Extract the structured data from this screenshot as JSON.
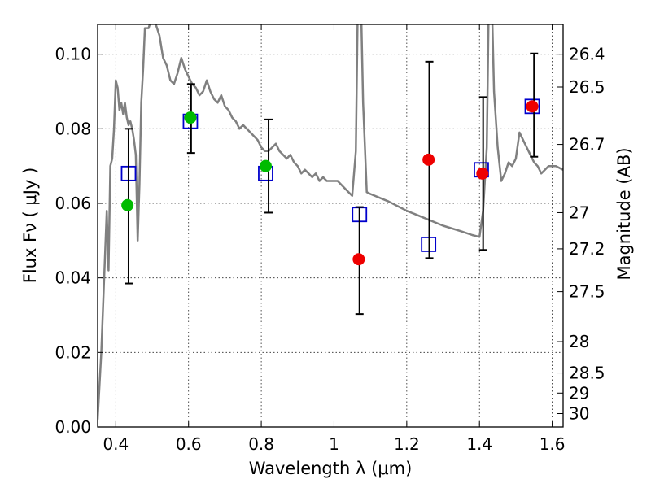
{
  "chart_data": {
    "type": "scatter",
    "xlabel": "Wavelength  λ (μm)",
    "ylabel": "Flux  Fν  ( μJy )",
    "ylabel_right": "Magnitude (AB)",
    "xlim": [
      0.35,
      1.63
    ],
    "ylim": [
      0.0,
      0.108
    ],
    "grid": true,
    "x_ticks": [
      0.4,
      0.6,
      0.8,
      1.0,
      1.2,
      1.4,
      1.6
    ],
    "x_tick_labels": [
      "0.4",
      "0.6",
      "0.8",
      "1",
      "1.2",
      "1.4",
      "1.6"
    ],
    "y_ticks": [
      0.0,
      0.02,
      0.04,
      0.06,
      0.08,
      0.1
    ],
    "y_tick_labels": [
      "0.00",
      "0.02",
      "0.04",
      "0.06",
      "0.08",
      "0.10"
    ],
    "right_ticks": [
      {
        "label": "26.4",
        "flux": 0.1
      },
      {
        "label": "26.5",
        "flux": 0.0912
      },
      {
        "label": "26.7",
        "flux": 0.0758
      },
      {
        "label": "27",
        "flux": 0.0575
      },
      {
        "label": "27.2",
        "flux": 0.0478
      },
      {
        "label": "27.5",
        "flux": 0.0363
      },
      {
        "label": "28",
        "flux": 0.0229
      },
      {
        "label": "28.5",
        "flux": 0.0145
      },
      {
        "label": "29",
        "flux": 0.0091
      },
      {
        "label": "30",
        "flux": 0.0036
      }
    ],
    "series": [
      {
        "kind": "model",
        "color": "#808080",
        "points": [
          [
            0.35,
            0.002
          ],
          [
            0.36,
            0.02
          ],
          [
            0.37,
            0.045
          ],
          [
            0.375,
            0.058
          ],
          [
            0.38,
            0.042
          ],
          [
            0.385,
            0.07
          ],
          [
            0.39,
            0.072
          ],
          [
            0.395,
            0.08
          ],
          [
            0.4,
            0.093
          ],
          [
            0.405,
            0.091
          ],
          [
            0.41,
            0.085
          ],
          [
            0.415,
            0.087
          ],
          [
            0.42,
            0.084
          ],
          [
            0.425,
            0.087
          ],
          [
            0.43,
            0.083
          ],
          [
            0.435,
            0.081
          ],
          [
            0.44,
            0.082
          ],
          [
            0.445,
            0.08
          ],
          [
            0.45,
            0.077
          ],
          [
            0.455,
            0.073
          ],
          [
            0.46,
            0.05
          ],
          [
            0.465,
            0.065
          ],
          [
            0.47,
            0.087
          ],
          [
            0.475,
            0.096
          ],
          [
            0.48,
            0.107
          ],
          [
            0.49,
            0.107
          ],
          [
            0.5,
            0.11
          ],
          [
            0.51,
            0.108
          ],
          [
            0.52,
            0.105
          ],
          [
            0.53,
            0.099
          ],
          [
            0.54,
            0.097
          ],
          [
            0.55,
            0.093
          ],
          [
            0.56,
            0.092
          ],
          [
            0.57,
            0.095
          ],
          [
            0.58,
            0.099
          ],
          [
            0.59,
            0.096
          ],
          [
            0.6,
            0.094
          ],
          [
            0.61,
            0.092
          ],
          [
            0.62,
            0.091
          ],
          [
            0.63,
            0.089
          ],
          [
            0.64,
            0.09
          ],
          [
            0.65,
            0.093
          ],
          [
            0.66,
            0.09
          ],
          [
            0.67,
            0.088
          ],
          [
            0.68,
            0.087
          ],
          [
            0.69,
            0.089
          ],
          [
            0.7,
            0.086
          ],
          [
            0.71,
            0.085
          ],
          [
            0.72,
            0.083
          ],
          [
            0.73,
            0.082
          ],
          [
            0.74,
            0.08
          ],
          [
            0.75,
            0.081
          ],
          [
            0.76,
            0.08
          ],
          [
            0.77,
            0.079
          ],
          [
            0.78,
            0.078
          ],
          [
            0.79,
            0.077
          ],
          [
            0.8,
            0.075
          ],
          [
            0.81,
            0.074
          ],
          [
            0.82,
            0.074
          ],
          [
            0.83,
            0.075
          ],
          [
            0.84,
            0.076
          ],
          [
            0.85,
            0.074
          ],
          [
            0.86,
            0.073
          ],
          [
            0.87,
            0.072
          ],
          [
            0.88,
            0.073
          ],
          [
            0.89,
            0.071
          ],
          [
            0.9,
            0.07
          ],
          [
            0.91,
            0.068
          ],
          [
            0.92,
            0.069
          ],
          [
            0.93,
            0.068
          ],
          [
            0.94,
            0.067
          ],
          [
            0.95,
            0.068
          ],
          [
            0.96,
            0.066
          ],
          [
            0.97,
            0.067
          ],
          [
            0.98,
            0.066
          ],
          [
            0.99,
            0.066
          ],
          [
            1.0,
            0.066
          ],
          [
            1.01,
            0.066
          ],
          [
            1.02,
            0.065
          ],
          [
            1.03,
            0.064
          ],
          [
            1.04,
            0.063
          ],
          [
            1.05,
            0.062
          ],
          [
            1.06,
            0.074
          ],
          [
            1.065,
            0.11
          ],
          [
            1.07,
            0.11
          ],
          [
            1.075,
            0.11
          ],
          [
            1.08,
            0.087
          ],
          [
            1.09,
            0.063
          ],
          [
            1.1,
            0.0625
          ],
          [
            1.15,
            0.0605
          ],
          [
            1.2,
            0.058
          ],
          [
            1.25,
            0.056
          ],
          [
            1.3,
            0.054
          ],
          [
            1.35,
            0.0525
          ],
          [
            1.38,
            0.0515
          ],
          [
            1.4,
            0.051
          ],
          [
            1.41,
            0.058
          ],
          [
            1.42,
            0.075
          ],
          [
            1.425,
            0.11
          ],
          [
            1.435,
            0.11
          ],
          [
            1.44,
            0.09
          ],
          [
            1.45,
            0.075
          ],
          [
            1.46,
            0.066
          ],
          [
            1.47,
            0.068
          ],
          [
            1.48,
            0.071
          ],
          [
            1.49,
            0.07
          ],
          [
            1.5,
            0.072
          ],
          [
            1.51,
            0.079
          ],
          [
            1.52,
            0.077
          ],
          [
            1.53,
            0.075
          ],
          [
            1.54,
            0.073
          ],
          [
            1.55,
            0.071
          ],
          [
            1.56,
            0.07
          ],
          [
            1.57,
            0.068
          ],
          [
            1.58,
            0.069
          ],
          [
            1.59,
            0.07
          ],
          [
            1.6,
            0.07
          ],
          [
            1.61,
            0.07
          ],
          [
            1.62,
            0.0695
          ],
          [
            1.63,
            0.069
          ]
        ]
      },
      {
        "kind": "open-square",
        "color": "#0000cc",
        "points": [
          [
            0.435,
            0.068
          ],
          [
            0.605,
            0.082
          ],
          [
            0.812,
            0.068
          ],
          [
            1.07,
            0.057
          ],
          [
            1.26,
            0.049
          ],
          [
            1.405,
            0.069
          ],
          [
            1.545,
            0.086
          ]
        ]
      },
      {
        "kind": "filled-circle",
        "color": "#00bb00",
        "points": [
          [
            0.432,
            0.0595
          ],
          [
            0.605,
            0.083
          ],
          [
            0.812,
            0.07
          ]
        ]
      },
      {
        "kind": "filled-circle",
        "color": "#ee0000",
        "points": [
          [
            1.068,
            0.045
          ],
          [
            1.26,
            0.0717
          ],
          [
            1.408,
            0.068
          ],
          [
            1.545,
            0.086
          ]
        ]
      },
      {
        "kind": "errorbar",
        "color": "#000000",
        "points": [
          [
            0.435,
            0.0385,
            0.08
          ],
          [
            0.607,
            0.0735,
            0.092
          ],
          [
            0.82,
            0.0575,
            0.0825
          ],
          [
            1.07,
            0.0303,
            0.059
          ],
          [
            1.262,
            0.0453,
            0.098
          ],
          [
            1.41,
            0.0475,
            0.0885
          ],
          [
            1.55,
            0.0725,
            0.1002
          ]
        ]
      }
    ]
  }
}
